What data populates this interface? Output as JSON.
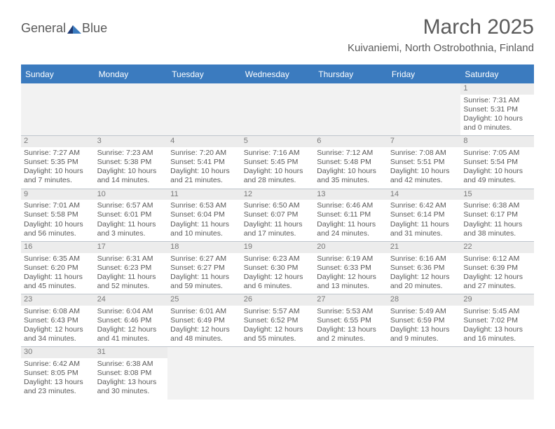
{
  "logo": {
    "text1": "General",
    "text2": "Blue",
    "color1": "#5a5a5a",
    "color2": "#3b7bbf"
  },
  "header": {
    "month_title": "March 2025",
    "location": "Kuivaniemi, North Ostrobothnia, Finland"
  },
  "calendar": {
    "header_bg": "#3b7bbf",
    "header_fg": "#ffffff",
    "divider_color": "#bfc5cc",
    "blank_bg": "#f2f2f2",
    "daynum_bg": "#ececec",
    "day_labels": [
      "Sunday",
      "Monday",
      "Tuesday",
      "Wednesday",
      "Thursday",
      "Friday",
      "Saturday"
    ],
    "weeks": [
      [
        null,
        null,
        null,
        null,
        null,
        null,
        {
          "n": "1",
          "sr": "Sunrise: 7:31 AM",
          "ss": "Sunset: 5:31 PM",
          "dl1": "Daylight: 10 hours",
          "dl2": "and 0 minutes."
        }
      ],
      [
        {
          "n": "2",
          "sr": "Sunrise: 7:27 AM",
          "ss": "Sunset: 5:35 PM",
          "dl1": "Daylight: 10 hours",
          "dl2": "and 7 minutes."
        },
        {
          "n": "3",
          "sr": "Sunrise: 7:23 AM",
          "ss": "Sunset: 5:38 PM",
          "dl1": "Daylight: 10 hours",
          "dl2": "and 14 minutes."
        },
        {
          "n": "4",
          "sr": "Sunrise: 7:20 AM",
          "ss": "Sunset: 5:41 PM",
          "dl1": "Daylight: 10 hours",
          "dl2": "and 21 minutes."
        },
        {
          "n": "5",
          "sr": "Sunrise: 7:16 AM",
          "ss": "Sunset: 5:45 PM",
          "dl1": "Daylight: 10 hours",
          "dl2": "and 28 minutes."
        },
        {
          "n": "6",
          "sr": "Sunrise: 7:12 AM",
          "ss": "Sunset: 5:48 PM",
          "dl1": "Daylight: 10 hours",
          "dl2": "and 35 minutes."
        },
        {
          "n": "7",
          "sr": "Sunrise: 7:08 AM",
          "ss": "Sunset: 5:51 PM",
          "dl1": "Daylight: 10 hours",
          "dl2": "and 42 minutes."
        },
        {
          "n": "8",
          "sr": "Sunrise: 7:05 AM",
          "ss": "Sunset: 5:54 PM",
          "dl1": "Daylight: 10 hours",
          "dl2": "and 49 minutes."
        }
      ],
      [
        {
          "n": "9",
          "sr": "Sunrise: 7:01 AM",
          "ss": "Sunset: 5:58 PM",
          "dl1": "Daylight: 10 hours",
          "dl2": "and 56 minutes."
        },
        {
          "n": "10",
          "sr": "Sunrise: 6:57 AM",
          "ss": "Sunset: 6:01 PM",
          "dl1": "Daylight: 11 hours",
          "dl2": "and 3 minutes."
        },
        {
          "n": "11",
          "sr": "Sunrise: 6:53 AM",
          "ss": "Sunset: 6:04 PM",
          "dl1": "Daylight: 11 hours",
          "dl2": "and 10 minutes."
        },
        {
          "n": "12",
          "sr": "Sunrise: 6:50 AM",
          "ss": "Sunset: 6:07 PM",
          "dl1": "Daylight: 11 hours",
          "dl2": "and 17 minutes."
        },
        {
          "n": "13",
          "sr": "Sunrise: 6:46 AM",
          "ss": "Sunset: 6:11 PM",
          "dl1": "Daylight: 11 hours",
          "dl2": "and 24 minutes."
        },
        {
          "n": "14",
          "sr": "Sunrise: 6:42 AM",
          "ss": "Sunset: 6:14 PM",
          "dl1": "Daylight: 11 hours",
          "dl2": "and 31 minutes."
        },
        {
          "n": "15",
          "sr": "Sunrise: 6:38 AM",
          "ss": "Sunset: 6:17 PM",
          "dl1": "Daylight: 11 hours",
          "dl2": "and 38 minutes."
        }
      ],
      [
        {
          "n": "16",
          "sr": "Sunrise: 6:35 AM",
          "ss": "Sunset: 6:20 PM",
          "dl1": "Daylight: 11 hours",
          "dl2": "and 45 minutes."
        },
        {
          "n": "17",
          "sr": "Sunrise: 6:31 AM",
          "ss": "Sunset: 6:23 PM",
          "dl1": "Daylight: 11 hours",
          "dl2": "and 52 minutes."
        },
        {
          "n": "18",
          "sr": "Sunrise: 6:27 AM",
          "ss": "Sunset: 6:27 PM",
          "dl1": "Daylight: 11 hours",
          "dl2": "and 59 minutes."
        },
        {
          "n": "19",
          "sr": "Sunrise: 6:23 AM",
          "ss": "Sunset: 6:30 PM",
          "dl1": "Daylight: 12 hours",
          "dl2": "and 6 minutes."
        },
        {
          "n": "20",
          "sr": "Sunrise: 6:19 AM",
          "ss": "Sunset: 6:33 PM",
          "dl1": "Daylight: 12 hours",
          "dl2": "and 13 minutes."
        },
        {
          "n": "21",
          "sr": "Sunrise: 6:16 AM",
          "ss": "Sunset: 6:36 PM",
          "dl1": "Daylight: 12 hours",
          "dl2": "and 20 minutes."
        },
        {
          "n": "22",
          "sr": "Sunrise: 6:12 AM",
          "ss": "Sunset: 6:39 PM",
          "dl1": "Daylight: 12 hours",
          "dl2": "and 27 minutes."
        }
      ],
      [
        {
          "n": "23",
          "sr": "Sunrise: 6:08 AM",
          "ss": "Sunset: 6:43 PM",
          "dl1": "Daylight: 12 hours",
          "dl2": "and 34 minutes."
        },
        {
          "n": "24",
          "sr": "Sunrise: 6:04 AM",
          "ss": "Sunset: 6:46 PM",
          "dl1": "Daylight: 12 hours",
          "dl2": "and 41 minutes."
        },
        {
          "n": "25",
          "sr": "Sunrise: 6:01 AM",
          "ss": "Sunset: 6:49 PM",
          "dl1": "Daylight: 12 hours",
          "dl2": "and 48 minutes."
        },
        {
          "n": "26",
          "sr": "Sunrise: 5:57 AM",
          "ss": "Sunset: 6:52 PM",
          "dl1": "Daylight: 12 hours",
          "dl2": "and 55 minutes."
        },
        {
          "n": "27",
          "sr": "Sunrise: 5:53 AM",
          "ss": "Sunset: 6:55 PM",
          "dl1": "Daylight: 13 hours",
          "dl2": "and 2 minutes."
        },
        {
          "n": "28",
          "sr": "Sunrise: 5:49 AM",
          "ss": "Sunset: 6:59 PM",
          "dl1": "Daylight: 13 hours",
          "dl2": "and 9 minutes."
        },
        {
          "n": "29",
          "sr": "Sunrise: 5:45 AM",
          "ss": "Sunset: 7:02 PM",
          "dl1": "Daylight: 13 hours",
          "dl2": "and 16 minutes."
        }
      ],
      [
        {
          "n": "30",
          "sr": "Sunrise: 6:42 AM",
          "ss": "Sunset: 8:05 PM",
          "dl1": "Daylight: 13 hours",
          "dl2": "and 23 minutes."
        },
        {
          "n": "31",
          "sr": "Sunrise: 6:38 AM",
          "ss": "Sunset: 8:08 PM",
          "dl1": "Daylight: 13 hours",
          "dl2": "and 30 minutes."
        },
        null,
        null,
        null,
        null,
        null
      ]
    ]
  }
}
